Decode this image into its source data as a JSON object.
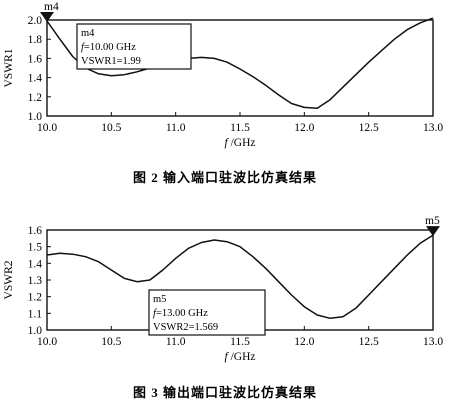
{
  "figures": [
    {
      "caption": "图 2   输入端口驻波比仿真结果"
    },
    {
      "caption": "图 3   输出端口驻波比仿真结果"
    }
  ],
  "chart_data": [
    {
      "type": "line",
      "title": "",
      "xlabel": "f /GHz",
      "ylabel": "VSWR1",
      "xlim": [
        10.0,
        13.0
      ],
      "ylim": [
        1.0,
        2.0
      ],
      "xticks": [
        "10.0",
        "10.5",
        "11.0",
        "11.5",
        "12.0",
        "12.5",
        "13.0"
      ],
      "yticks": [
        "1.0",
        "1.2",
        "1.4",
        "1.6",
        "1.8",
        "2.0"
      ],
      "grid": false,
      "series": [
        {
          "x": [
            10.0,
            10.1,
            10.2,
            10.3,
            10.4,
            10.5,
            10.6,
            10.7,
            10.8,
            10.9,
            11.0,
            11.1,
            11.2,
            11.3,
            11.4,
            11.5,
            11.6,
            11.7,
            11.8,
            11.9,
            12.0,
            12.1,
            12.2,
            12.3,
            12.4,
            12.5,
            12.6,
            12.7,
            12.8,
            12.9,
            13.0
          ],
          "y": [
            1.99,
            1.8,
            1.62,
            1.5,
            1.44,
            1.42,
            1.43,
            1.46,
            1.5,
            1.54,
            1.57,
            1.6,
            1.61,
            1.6,
            1.56,
            1.49,
            1.41,
            1.32,
            1.22,
            1.13,
            1.09,
            1.08,
            1.17,
            1.3,
            1.43,
            1.56,
            1.68,
            1.8,
            1.9,
            1.97,
            2.02
          ]
        }
      ],
      "marker": {
        "name": "m4",
        "x": 10.0,
        "y": 1.99,
        "box_lines": [
          "m4",
          "f=10.00 GHz",
          "VSWR1=1.99"
        ]
      }
    },
    {
      "type": "line",
      "title": "",
      "xlabel": "f /GHz",
      "ylabel": "VSWR2",
      "xlim": [
        10.0,
        13.0
      ],
      "ylim": [
        1.0,
        1.6
      ],
      "xticks": [
        "10.0",
        "10.5",
        "11.0",
        "11.5",
        "12.0",
        "12.5",
        "13.0"
      ],
      "yticks": [
        "1.0",
        "1.1",
        "1.2",
        "1.3",
        "1.4",
        "1.5",
        "1.6"
      ],
      "grid": false,
      "series": [
        {
          "x": [
            10.0,
            10.1,
            10.2,
            10.3,
            10.4,
            10.5,
            10.6,
            10.7,
            10.8,
            10.9,
            11.0,
            11.1,
            11.2,
            11.3,
            11.4,
            11.5,
            11.6,
            11.7,
            11.8,
            11.9,
            12.0,
            12.1,
            12.2,
            12.3,
            12.4,
            12.5,
            12.6,
            12.7,
            12.8,
            12.9,
            13.0
          ],
          "y": [
            1.45,
            1.46,
            1.455,
            1.44,
            1.41,
            1.36,
            1.31,
            1.29,
            1.3,
            1.36,
            1.43,
            1.49,
            1.525,
            1.54,
            1.53,
            1.5,
            1.44,
            1.37,
            1.29,
            1.21,
            1.14,
            1.09,
            1.07,
            1.08,
            1.13,
            1.21,
            1.29,
            1.37,
            1.45,
            1.52,
            1.569
          ]
        }
      ],
      "marker": {
        "name": "m5",
        "x": 13.0,
        "y": 1.569,
        "box_lines": [
          "m5",
          "f=13.00 GHz",
          "VSWR2=1.569"
        ]
      }
    }
  ]
}
